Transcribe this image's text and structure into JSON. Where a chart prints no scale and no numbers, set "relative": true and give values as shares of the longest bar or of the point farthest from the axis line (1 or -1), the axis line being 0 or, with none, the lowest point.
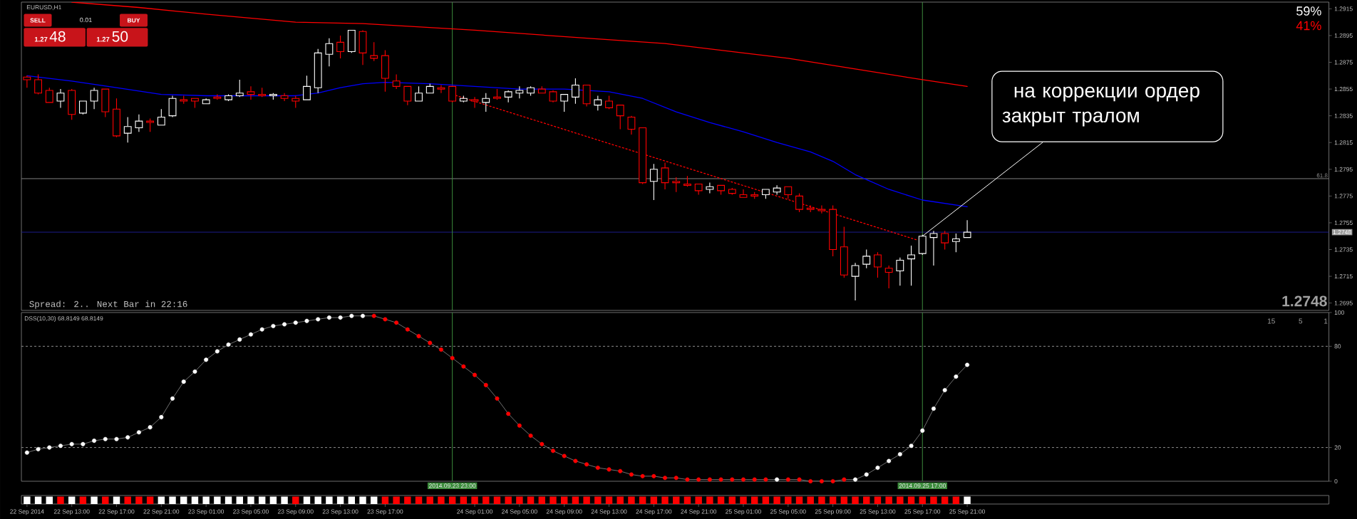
{
  "chart_data": [
    {
      "type": "candlestick",
      "title": "EURUSD,H1",
      "x": [
        "2014-09-22T09:00",
        "2014-09-22T10:00",
        "2014-09-22T11:00",
        "2014-09-22T12:00",
        "2014-09-22T13:00",
        "2014-09-22T14:00",
        "2014-09-22T15:00",
        "2014-09-22T16:00",
        "2014-09-22T17:00",
        "2014-09-22T18:00",
        "2014-09-22T19:00",
        "2014-09-22T20:00",
        "2014-09-22T21:00",
        "2014-09-22T22:00",
        "2014-09-22T23:00",
        "2014-09-23T00:00",
        "2014-09-23T01:00",
        "2014-09-23T02:00",
        "2014-09-23T03:00",
        "2014-09-23T04:00",
        "2014-09-23T05:00",
        "2014-09-23T06:00",
        "2014-09-23T07:00",
        "2014-09-23T08:00",
        "2014-09-23T09:00",
        "2014-09-23T10:00",
        "2014-09-23T11:00",
        "2014-09-23T12:00",
        "2014-09-23T13:00",
        "2014-09-23T14:00",
        "2014-09-23T15:00",
        "2014-09-23T16:00",
        "2014-09-23T17:00",
        "2014-09-23T18:00",
        "2014-09-23T19:00",
        "2014-09-23T20:00",
        "2014-09-23T21:00",
        "2014-09-23T22:00",
        "2014-09-23T23:00",
        "2014-09-24T00:00",
        "2014-09-24T01:00",
        "2014-09-24T02:00",
        "2014-09-24T03:00",
        "2014-09-24T04:00",
        "2014-09-24T05:00",
        "2014-09-24T06:00",
        "2014-09-24T07:00",
        "2014-09-24T08:00",
        "2014-09-24T09:00",
        "2014-09-24T10:00",
        "2014-09-24T11:00",
        "2014-09-24T12:00",
        "2014-09-24T13:00",
        "2014-09-24T14:00",
        "2014-09-24T15:00",
        "2014-09-24T16:00",
        "2014-09-24T17:00",
        "2014-09-24T18:00",
        "2014-09-24T19:00",
        "2014-09-24T20:00",
        "2014-09-24T21:00",
        "2014-09-24T22:00",
        "2014-09-24T23:00",
        "2014-09-25T00:00",
        "2014-09-25T01:00",
        "2014-09-25T02:00",
        "2014-09-25T03:00",
        "2014-09-25T04:00",
        "2014-09-25T05:00",
        "2014-09-25T06:00",
        "2014-09-25T07:00",
        "2014-09-25T08:00",
        "2014-09-25T09:00",
        "2014-09-25T10:00",
        "2014-09-25T11:00",
        "2014-09-25T12:00",
        "2014-09-25T13:00",
        "2014-09-25T14:00",
        "2014-09-25T15:00",
        "2014-09-25T16:00",
        "2014-09-25T17:00",
        "2014-09-25T18:00",
        "2014-09-25T19:00",
        "2014-09-25T20:00",
        "2014-09-25T21:00"
      ],
      "ohlc": [
        [
          1.2864,
          1.2865,
          1.2856,
          1.2862
        ],
        [
          1.2862,
          1.2866,
          1.2851,
          1.2852
        ],
        [
          1.2854,
          1.2856,
          1.2845,
          1.2845
        ],
        [
          1.2846,
          1.2855,
          1.2841,
          1.2852
        ],
        [
          1.2854,
          1.2855,
          1.2832,
          1.2836
        ],
        [
          1.2837,
          1.2846,
          1.2836,
          1.2846
        ],
        [
          1.2846,
          1.2856,
          1.284,
          1.2854
        ],
        [
          1.2855,
          1.2855,
          1.2834,
          1.2838
        ],
        [
          1.284,
          1.2848,
          1.2819,
          1.282
        ],
        [
          1.2822,
          1.2834,
          1.2815,
          1.2827
        ],
        [
          1.2826,
          1.2836,
          1.2823,
          1.2831
        ],
        [
          1.2831,
          1.2833,
          1.2823,
          1.283
        ],
        [
          1.2828,
          1.284,
          1.2828,
          1.2834
        ],
        [
          1.2835,
          1.285,
          1.2834,
          1.2848
        ],
        [
          1.2847,
          1.285,
          1.2844,
          1.2846
        ],
        [
          1.2848,
          1.2848,
          1.2841,
          1.2846
        ],
        [
          1.2844,
          1.2848,
          1.2844,
          1.2847
        ],
        [
          1.2849,
          1.2851,
          1.2847,
          1.2848
        ],
        [
          1.2847,
          1.2851,
          1.2846,
          1.285
        ],
        [
          1.285,
          1.2862,
          1.2849,
          1.2852
        ],
        [
          1.2853,
          1.2857,
          1.2847,
          1.2851
        ],
        [
          1.2851,
          1.2856,
          1.2849,
          1.285
        ],
        [
          1.285,
          1.2852,
          1.2847,
          1.2851
        ],
        [
          1.285,
          1.2852,
          1.2846,
          1.2848
        ],
        [
          1.2848,
          1.285,
          1.2841,
          1.2846
        ],
        [
          1.2847,
          1.2865,
          1.2847,
          1.2857
        ],
        [
          1.2856,
          1.2885,
          1.2852,
          1.2882
        ],
        [
          1.2881,
          1.2893,
          1.2872,
          1.2889
        ],
        [
          1.289,
          1.2895,
          1.2878,
          1.2883
        ],
        [
          1.2883,
          1.2899,
          1.2882,
          1.2899
        ],
        [
          1.2898,
          1.2899,
          1.2873,
          1.2882
        ],
        [
          1.288,
          1.289,
          1.2876,
          1.2878
        ],
        [
          1.288,
          1.2884,
          1.2853,
          1.2863
        ],
        [
          1.2861,
          1.2866,
          1.2855,
          1.2857
        ],
        [
          1.2857,
          1.2857,
          1.2843,
          1.2846
        ],
        [
          1.2846,
          1.2857,
          1.2846,
          1.2852
        ],
        [
          1.2852,
          1.2859,
          1.2852,
          1.2857
        ],
        [
          1.2856,
          1.2858,
          1.2852,
          1.2855
        ],
        [
          1.2857,
          1.2857,
          1.2845,
          1.2846
        ],
        [
          1.2846,
          1.285,
          1.2845,
          1.2848
        ],
        [
          1.2847,
          1.2849,
          1.2841,
          1.2846
        ],
        [
          1.2845,
          1.2852,
          1.2838,
          1.2848
        ],
        [
          1.2849,
          1.2855,
          1.2847,
          1.2848
        ],
        [
          1.2849,
          1.2854,
          1.2845,
          1.2853
        ],
        [
          1.2852,
          1.2857,
          1.2848,
          1.2854
        ],
        [
          1.2852,
          1.2857,
          1.285,
          1.2856
        ],
        [
          1.2855,
          1.2857,
          1.2852,
          1.2852
        ],
        [
          1.2853,
          1.2854,
          1.2845,
          1.2846
        ],
        [
          1.2846,
          1.2851,
          1.2838,
          1.2851
        ],
        [
          1.2849,
          1.2863,
          1.2844,
          1.2858
        ],
        [
          1.2858,
          1.2858,
          1.2842,
          1.2844
        ],
        [
          1.2843,
          1.285,
          1.2839,
          1.2847
        ],
        [
          1.2846,
          1.285,
          1.284,
          1.2841
        ],
        [
          1.2843,
          1.2843,
          1.2825,
          1.2835
        ],
        [
          1.2834,
          1.2835,
          1.2821,
          1.2825
        ],
        [
          1.2826,
          1.2826,
          1.2784,
          1.2785
        ],
        [
          1.2786,
          1.2799,
          1.2772,
          1.2795
        ],
        [
          1.2796,
          1.28,
          1.278,
          1.2785
        ],
        [
          1.2786,
          1.2789,
          1.2778,
          1.2785
        ],
        [
          1.2784,
          1.279,
          1.2782,
          1.2783
        ],
        [
          1.2784,
          1.2784,
          1.2776,
          1.2779
        ],
        [
          1.278,
          1.2785,
          1.2777,
          1.2782
        ],
        [
          1.2783,
          1.2783,
          1.2776,
          1.2779
        ],
        [
          1.278,
          1.2781,
          1.2776,
          1.2777
        ],
        [
          1.2776,
          1.278,
          1.2774,
          1.2774
        ],
        [
          1.2776,
          1.2778,
          1.2773,
          1.2775
        ],
        [
          1.2776,
          1.278,
          1.2773,
          1.278
        ],
        [
          1.2778,
          1.2783,
          1.2776,
          1.2781
        ],
        [
          1.2782,
          1.2782,
          1.2773,
          1.2776
        ],
        [
          1.2775,
          1.2777,
          1.2763,
          1.2765
        ],
        [
          1.2766,
          1.2768,
          1.2763,
          1.2765
        ],
        [
          1.2765,
          1.2768,
          1.2762,
          1.2764
        ],
        [
          1.2765,
          1.2768,
          1.273,
          1.2735
        ],
        [
          1.2737,
          1.2752,
          1.2714,
          1.2716
        ],
        [
          1.2715,
          1.2725,
          1.2697,
          1.2723
        ],
        [
          1.2724,
          1.2735,
          1.2721,
          1.273
        ],
        [
          1.2731,
          1.2733,
          1.2714,
          1.2722
        ],
        [
          1.2721,
          1.2723,
          1.2706,
          1.2718
        ],
        [
          1.2719,
          1.2729,
          1.2708,
          1.2727
        ],
        [
          1.2728,
          1.2738,
          1.2708,
          1.2731
        ],
        [
          1.2732,
          1.2746,
          1.2731,
          1.2745
        ],
        [
          1.2744,
          1.2749,
          1.2723,
          1.2747
        ],
        [
          1.2747,
          1.2749,
          1.2735,
          1.274
        ],
        [
          1.2741,
          1.2747,
          1.2733,
          1.2743
        ],
        [
          1.2744,
          1.2757,
          1.2744,
          1.2748
        ]
      ],
      "colors": [
        "#ff0000",
        "#ff0000",
        "#ff0000",
        "#ffffff",
        "#ff0000",
        "#ffffff",
        "#ffffff",
        "#ff0000",
        "#ff0000",
        "#ffffff",
        "#ffffff",
        "#ff0000",
        "#ffffff",
        "#ffffff",
        "#ff0000",
        "#ff0000",
        "#ffffff",
        "#ff0000",
        "#ffffff",
        "#ffffff",
        "#ff0000",
        "#ff0000",
        "#ffffff",
        "#ff0000",
        "#ff0000",
        "#ffffff",
        "#ffffff",
        "#ffffff",
        "#ff0000",
        "#ffffff",
        "#ff0000",
        "#ff0000",
        "#ff0000",
        "#ff0000",
        "#ff0000",
        "#ffffff",
        "#ffffff",
        "#ff0000",
        "#ff0000",
        "#ffffff",
        "#ff0000",
        "#ffffff",
        "#ff0000",
        "#ffffff",
        "#ffffff",
        "#ffffff",
        "#ff0000",
        "#ff0000",
        "#ffffff",
        "#ffffff",
        "#ff0000",
        "#ffffff",
        "#ff0000",
        "#ff0000",
        "#ff0000",
        "#ff0000",
        "#ffffff",
        "#ff0000",
        "#ff0000",
        "#ff0000",
        "#ff0000",
        "#ffffff",
        "#ff0000",
        "#ff0000",
        "#ff0000",
        "#ff0000",
        "#ffffff",
        "#ffffff",
        "#ff0000",
        "#ff0000",
        "#ff0000",
        "#ff0000",
        "#ff0000",
        "#ff0000",
        "#ffffff",
        "#ffffff",
        "#ff0000",
        "#ff0000",
        "#ffffff",
        "#ffffff",
        "#ffffff",
        "#ffffff",
        "#ff0000",
        "#ffffff",
        "#ffffff"
      ],
      "series": [
        {
          "type": "line",
          "color": "#ff0000",
          "x": [
            "2014-09-22T13:00",
            "2014-09-22T19:00",
            "2014-09-23T01:00",
            "2014-09-23T05:00",
            "2014-09-23T09:00",
            "2014-09-23T15:00",
            "2014-09-24T01:00",
            "2014-09-24T11:00",
            "2014-09-24T18:00",
            "2014-09-25T01:00",
            "2014-09-25T05:00",
            "2014-09-25T11:00",
            "2014-09-25T17:00",
            "2014-09-25T21:00"
          ],
          "values": [
            1.292,
            1.2916,
            1.2911,
            1.2908,
            1.2905,
            1.2904,
            1.2899,
            1.2893,
            1.2889,
            1.2882,
            1.2878,
            1.287,
            1.2862,
            1.2857
          ]
        },
        {
          "type": "line",
          "color": "#0000ff",
          "x": [
            "2014-09-22T09:00",
            "2014-09-22T13:00",
            "2014-09-22T17:00",
            "2014-09-22T21:00",
            "2014-09-23T01:00",
            "2014-09-23T05:00",
            "2014-09-23T09:00",
            "2014-09-23T11:00",
            "2014-09-23T13:00",
            "2014-09-23T15:00",
            "2014-09-23T17:00",
            "2014-09-23T21:00",
            "2014-09-24T01:00",
            "2014-09-24T05:00",
            "2014-09-24T09:00",
            "2014-09-24T13:00",
            "2014-09-24T16:00",
            "2014-09-24T19:00",
            "2014-09-24T22:00",
            "2014-09-25T01:00",
            "2014-09-25T04:00",
            "2014-09-25T07:00",
            "2014-09-25T09:00",
            "2014-09-25T11:00",
            "2014-09-25T14:00",
            "2014-09-25T17:00",
            "2014-09-25T21:00"
          ],
          "values": [
            1.2865,
            1.2861,
            1.2856,
            1.2851,
            1.285,
            1.285,
            1.285,
            1.2852,
            1.2856,
            1.2859,
            1.286,
            1.2859,
            1.2857,
            1.2855,
            1.2855,
            1.2853,
            1.2848,
            1.2838,
            1.283,
            1.2823,
            1.2815,
            1.2808,
            1.2801,
            1.2791,
            1.278,
            1.2772,
            1.2767
          ]
        },
        {
          "type": "line",
          "color": "#ff0000",
          "line_style": "dotted",
          "x": [
            "2014-09-23T23:00",
            "2014-09-25T16:35"
          ],
          "values": [
            1.2851,
            1.2742
          ]
        }
      ],
      "xlim": [
        "2014-09-22T08:30",
        "2014-09-27T05:19"
      ],
      "ylim": [
        1.26895,
        1.292
      ],
      "yticks": [
        1.2695,
        1.2715,
        1.2735,
        1.2755,
        1.2775,
        1.2795,
        1.2815,
        1.2835,
        1.2855,
        1.2875,
        1.2895,
        1.2915
      ],
      "tick_labels": "y",
      "ref_lines": [
        {
          "axis": "y",
          "value": 1.2788,
          "color": "#808080"
        },
        {
          "axis": "y",
          "value": 1.2748,
          "label": "1.2748",
          "color": "#1c1c8c"
        },
        {
          "axis": "x",
          "value": "2014-09-23T23:00",
          "color": "#3c8c3c"
        },
        {
          "axis": "x",
          "value": "2014-09-25T17:00",
          "color": "#3c8c3c"
        }
      ],
      "annotations": [
        "SELL",
        "0.01",
        "BUY",
        "1.27",
        "48",
        "1.27",
        "50",
        "59%",
        "41%",
        "Spread: 2.. Next Bar in 22:16",
        "1.2748",
        {
          "text": "на коррекции ордер закрыт тралом",
          "x": "2014-09-25T17:00",
          "y": 1.2745
        },
        {
          "text": "61.8",
          "x": "2014-09-27T05:19",
          "y": 1.2788
        }
      ]
    },
    {
      "type": "line",
      "title": "DSS(10,30) 68.8149 68.8149",
      "x": [
        "2014-09-22T09:00",
        "2014-09-22T10:00",
        "2014-09-22T11:00",
        "2014-09-22T12:00",
        "2014-09-22T13:00",
        "2014-09-22T14:00",
        "2014-09-22T15:00",
        "2014-09-22T16:00",
        "2014-09-22T17:00",
        "2014-09-22T18:00",
        "2014-09-22T19:00",
        "2014-09-22T20:00",
        "2014-09-22T21:00",
        "2014-09-22T22:00",
        "2014-09-22T23:00",
        "2014-09-23T00:00",
        "2014-09-23T01:00",
        "2014-09-23T02:00",
        "2014-09-23T03:00",
        "2014-09-23T04:00",
        "2014-09-23T05:00",
        "2014-09-23T06:00",
        "2014-09-23T07:00",
        "2014-09-23T08:00",
        "2014-09-23T09:00",
        "2014-09-23T10:00",
        "2014-09-23T11:00",
        "2014-09-23T12:00",
        "2014-09-23T13:00",
        "2014-09-23T14:00",
        "2014-09-23T15:00",
        "2014-09-23T16:00",
        "2014-09-23T17:00",
        "2014-09-23T18:00",
        "2014-09-23T19:00",
        "2014-09-23T20:00",
        "2014-09-23T21:00",
        "2014-09-23T22:00",
        "2014-09-23T23:00",
        "2014-09-24T00:00",
        "2014-09-24T01:00",
        "2014-09-24T02:00",
        "2014-09-24T03:00",
        "2014-09-24T04:00",
        "2014-09-24T05:00",
        "2014-09-24T06:00",
        "2014-09-24T07:00",
        "2014-09-24T08:00",
        "2014-09-24T09:00",
        "2014-09-24T10:00",
        "2014-09-24T11:00",
        "2014-09-24T12:00",
        "2014-09-24T13:00",
        "2014-09-24T14:00",
        "2014-09-24T15:00",
        "2014-09-24T16:00",
        "2014-09-24T17:00",
        "2014-09-24T18:00",
        "2014-09-24T19:00",
        "2014-09-24T20:00",
        "2014-09-24T21:00",
        "2014-09-24T22:00",
        "2014-09-24T23:00",
        "2014-09-25T00:00",
        "2014-09-25T01:00",
        "2014-09-25T02:00",
        "2014-09-25T03:00",
        "2014-09-25T04:00",
        "2014-09-25T05:00",
        "2014-09-25T06:00",
        "2014-09-25T07:00",
        "2014-09-25T08:00",
        "2014-09-25T09:00",
        "2014-09-25T10:00",
        "2014-09-25T11:00",
        "2014-09-25T12:00",
        "2014-09-25T13:00",
        "2014-09-25T14:00",
        "2014-09-25T15:00",
        "2014-09-25T16:00",
        "2014-09-25T17:00",
        "2014-09-25T18:00",
        "2014-09-25T19:00",
        "2014-09-25T20:00",
        "2014-09-25T21:00"
      ],
      "series": [
        {
          "color": "#8c8c8c",
          "values": [
            17,
            19,
            20,
            21,
            22,
            22,
            24,
            25,
            25,
            26,
            29,
            32,
            38,
            49,
            59,
            65,
            72,
            77,
            81,
            84,
            87,
            90,
            92,
            93,
            94,
            95,
            96,
            97,
            97,
            98,
            98,
            98,
            96,
            94,
            90,
            86,
            82,
            78,
            73,
            68,
            63,
            57,
            49,
            40,
            33,
            27,
            22,
            18,
            15,
            12,
            10,
            8,
            7,
            6,
            4,
            3,
            3,
            2,
            2,
            1,
            1,
            1,
            1,
            1,
            1,
            1,
            1,
            1,
            1,
            1,
            0,
            0,
            0,
            1,
            1,
            4,
            8,
            12,
            16,
            21,
            30,
            43,
            54,
            62,
            69
          ],
          "colors": [
            "#ffffff",
            "#ffffff",
            "#ffffff",
            "#ffffff",
            "#ffffff",
            "#ffffff",
            "#ffffff",
            "#ffffff",
            "#ffffff",
            "#ffffff",
            "#ffffff",
            "#ffffff",
            "#ffffff",
            "#ffffff",
            "#ffffff",
            "#ffffff",
            "#ffffff",
            "#ffffff",
            "#ffffff",
            "#ffffff",
            "#ffffff",
            "#ffffff",
            "#ffffff",
            "#ffffff",
            "#ffffff",
            "#ffffff",
            "#ffffff",
            "#ffffff",
            "#ffffff",
            "#ffffff",
            "#ffffff",
            "#ff0000",
            "#ff0000",
            "#ff0000",
            "#ff0000",
            "#ff0000",
            "#ff0000",
            "#ff0000",
            "#ff0000",
            "#ff0000",
            "#ff0000",
            "#ff0000",
            "#ff0000",
            "#ff0000",
            "#ff0000",
            "#ff0000",
            "#ff0000",
            "#ff0000",
            "#ff0000",
            "#ff0000",
            "#ff0000",
            "#ff0000",
            "#ff0000",
            "#ff0000",
            "#ff0000",
            "#ff0000",
            "#ff0000",
            "#ff0000",
            "#ff0000",
            "#ff0000",
            "#ff0000",
            "#ff0000",
            "#ff0000",
            "#ff0000",
            "#ff0000",
            "#ff0000",
            "#ff0000",
            "#ffffff",
            "#ff0000",
            "#ff0000",
            "#ff0000",
            "#ff0000",
            "#ff0000",
            "#ff0000",
            "#ffffff",
            "#ffffff",
            "#ffffff",
            "#ffffff",
            "#ffffff",
            "#ffffff",
            "#ffffff",
            "#ffffff",
            "#ffffff",
            "#ffffff",
            "#ffffff"
          ]
        }
      ],
      "marker": "circle",
      "xlim": [
        "2014-09-22T08:30",
        "2014-09-27T05:19"
      ],
      "ylim": [
        0,
        100
      ],
      "yticks": [
        0,
        20,
        80,
        100
      ],
      "tick_labels": "y",
      "ref_lines": [
        {
          "axis": "y",
          "value": 80,
          "line_style": "dashed",
          "color": "#8c8c8c"
        },
        {
          "axis": "y",
          "value": 20,
          "line_style": "dashed",
          "color": "#8c8c8c"
        },
        {
          "axis": "x",
          "value": "2014-09-23T23:00",
          "label": "2014.09.23 23:00",
          "color": "#3c8c3c"
        },
        {
          "axis": "x",
          "value": "2014-09-25T17:00",
          "label": "2014.09.25 17:00",
          "color": "#3c8c3c"
        }
      ],
      "annotations": [
        "15",
        "5",
        "1"
      ]
    },
    {
      "type": "bar",
      "relative": true,
      "x": [
        "2014-09-22T09:00",
        "2014-09-22T10:00",
        "2014-09-22T11:00",
        "2014-09-22T12:00",
        "2014-09-22T13:00",
        "2014-09-22T14:00",
        "2014-09-22T15:00",
        "2014-09-22T16:00",
        "2014-09-22T17:00",
        "2014-09-22T18:00",
        "2014-09-22T19:00",
        "2014-09-22T20:00",
        "2014-09-22T21:00",
        "2014-09-22T22:00",
        "2014-09-22T23:00",
        "2014-09-23T00:00",
        "2014-09-23T01:00",
        "2014-09-23T02:00",
        "2014-09-23T03:00",
        "2014-09-23T04:00",
        "2014-09-23T05:00",
        "2014-09-23T06:00",
        "2014-09-23T07:00",
        "2014-09-23T08:00",
        "2014-09-23T09:00",
        "2014-09-23T10:00",
        "2014-09-23T11:00",
        "2014-09-23T12:00",
        "2014-09-23T13:00",
        "2014-09-23T14:00",
        "2014-09-23T15:00",
        "2014-09-23T16:00",
        "2014-09-23T17:00",
        "2014-09-23T18:00",
        "2014-09-23T19:00",
        "2014-09-23T20:00",
        "2014-09-23T21:00",
        "2014-09-23T22:00",
        "2014-09-23T23:00",
        "2014-09-24T00:00",
        "2014-09-24T01:00",
        "2014-09-24T02:00",
        "2014-09-24T03:00",
        "2014-09-24T04:00",
        "2014-09-24T05:00",
        "2014-09-24T06:00",
        "2014-09-24T07:00",
        "2014-09-24T08:00",
        "2014-09-24T09:00",
        "2014-09-24T10:00",
        "2014-09-24T11:00",
        "2014-09-24T12:00",
        "2014-09-24T13:00",
        "2014-09-24T14:00",
        "2014-09-24T15:00",
        "2014-09-24T16:00",
        "2014-09-24T17:00",
        "2014-09-24T18:00",
        "2014-09-24T19:00",
        "2014-09-24T20:00",
        "2014-09-24T21:00",
        "2014-09-24T22:00",
        "2014-09-24T23:00",
        "2014-09-25T00:00",
        "2014-09-25T01:00",
        "2014-09-25T02:00",
        "2014-09-25T03:00",
        "2014-09-25T04:00",
        "2014-09-25T05:00",
        "2014-09-25T06:00",
        "2014-09-25T07:00",
        "2014-09-25T08:00",
        "2014-09-25T09:00",
        "2014-09-25T10:00",
        "2014-09-25T11:00",
        "2014-09-25T12:00",
        "2014-09-25T13:00",
        "2014-09-25T14:00",
        "2014-09-25T15:00",
        "2014-09-25T16:00",
        "2014-09-25T17:00",
        "2014-09-25T18:00",
        "2014-09-25T19:00",
        "2014-09-25T20:00",
        "2014-09-25T21:00"
      ],
      "values": [
        1,
        1,
        1,
        1,
        1,
        1,
        1,
        1,
        1,
        1,
        1,
        1,
        1,
        1,
        1,
        1,
        1,
        1,
        1,
        1,
        1,
        1,
        1,
        1,
        1,
        1,
        1,
        1,
        1,
        1,
        1,
        1,
        1,
        1,
        1,
        1,
        1,
        1,
        1,
        1,
        1,
        1,
        1,
        1,
        1,
        1,
        1,
        1,
        1,
        1,
        1,
        1,
        1,
        1,
        1,
        1,
        1,
        1,
        1,
        1,
        1,
        1,
        1,
        1,
        1,
        1,
        1,
        1,
        1,
        1,
        1,
        1,
        1,
        1,
        1,
        1,
        1,
        1,
        1,
        1,
        1,
        1,
        1,
        1,
        1
      ],
      "colors": [
        "#ffffff",
        "#ffffff",
        "#ffffff",
        "#ff0000",
        "#ffffff",
        "#ff0000",
        "#ffffff",
        "#ff0000",
        "#ffffff",
        "#ff0000",
        "#ff0000",
        "#ff0000",
        "#ffffff",
        "#ffffff",
        "#ffffff",
        "#ffffff",
        "#ffffff",
        "#ffffff",
        "#ffffff",
        "#ffffff",
        "#ffffff",
        "#ffffff",
        "#ffffff",
        "#ffffff",
        "#ff0000",
        "#ffffff",
        "#ffffff",
        "#ffffff",
        "#ffffff",
        "#ffffff",
        "#ffffff",
        "#ffffff",
        "#ff0000",
        "#ff0000",
        "#ff0000",
        "#ff0000",
        "#ff0000",
        "#ff0000",
        "#ff0000",
        "#ff0000",
        "#ff0000",
        "#ff0000",
        "#ff0000",
        "#ff0000",
        "#ff0000",
        "#ff0000",
        "#ff0000",
        "#ff0000",
        "#ff0000",
        "#ff0000",
        "#ff0000",
        "#ff0000",
        "#ff0000",
        "#ff0000",
        "#ff0000",
        "#ff0000",
        "#ff0000",
        "#ff0000",
        "#ff0000",
        "#ff0000",
        "#ff0000",
        "#ff0000",
        "#ff0000",
        "#ff0000",
        "#ff0000",
        "#ff0000",
        "#ff0000",
        "#ff0000",
        "#ff0000",
        "#ff0000",
        "#ff0000",
        "#ff0000",
        "#ff0000",
        "#ff0000",
        "#ff0000",
        "#ff0000",
        "#ff0000",
        "#ff0000",
        "#ff0000",
        "#ff0000",
        "#ff0000",
        "#ff0000",
        "#ff0000",
        "#ff0000",
        "#ffffff"
      ],
      "xlim": [
        "2014-09-22T08:30",
        "2014-09-27T05:19"
      ],
      "xticks": [
        {
          "value": "2014-09-22T09:00",
          "label": "22 Sep 2014"
        },
        {
          "value": "2014-09-22T13:00",
          "label": "22 Sep 13:00"
        },
        {
          "value": "2014-09-22T17:00",
          "label": "22 Sep 17:00"
        },
        {
          "value": "2014-09-22T21:00",
          "label": "22 Sep 21:00"
        },
        {
          "value": "2014-09-23T01:00",
          "label": "23 Sep 01:00"
        },
        {
          "value": "2014-09-23T05:00",
          "label": "23 Sep 05:00"
        },
        {
          "value": "2014-09-23T09:00",
          "label": "23 Sep 09:00"
        },
        {
          "value": "2014-09-23T13:00",
          "label": "23 Sep 13:00"
        },
        {
          "value": "2014-09-23T17:00",
          "label": "23 Sep 17:00"
        },
        {
          "value": "2014-09-24T01:00",
          "label": "24 Sep 01:00"
        },
        {
          "value": "2014-09-24T05:00",
          "label": "24 Sep 05:00"
        },
        {
          "value": "2014-09-24T09:00",
          "label": "24 Sep 09:00"
        },
        {
          "value": "2014-09-24T13:00",
          "label": "24 Sep 13:00"
        },
        {
          "value": "2014-09-24T17:00",
          "label": "24 Sep 17:00"
        },
        {
          "value": "2014-09-24T21:00",
          "label": "24 Sep 21:00"
        },
        {
          "value": "2014-09-25T01:00",
          "label": "25 Sep 01:00"
        },
        {
          "value": "2014-09-25T05:00",
          "label": "25 Sep 05:00"
        },
        {
          "value": "2014-09-25T09:00",
          "label": "25 Sep 09:00"
        },
        {
          "value": "2014-09-25T13:00",
          "label": "25 Sep 13:00"
        },
        {
          "value": "2014-09-25T17:00",
          "label": "25 Sep 17:00"
        },
        {
          "value": "2014-09-25T21:00",
          "label": "25 Sep 21:00"
        }
      ],
      "tick_labels": "x"
    }
  ]
}
